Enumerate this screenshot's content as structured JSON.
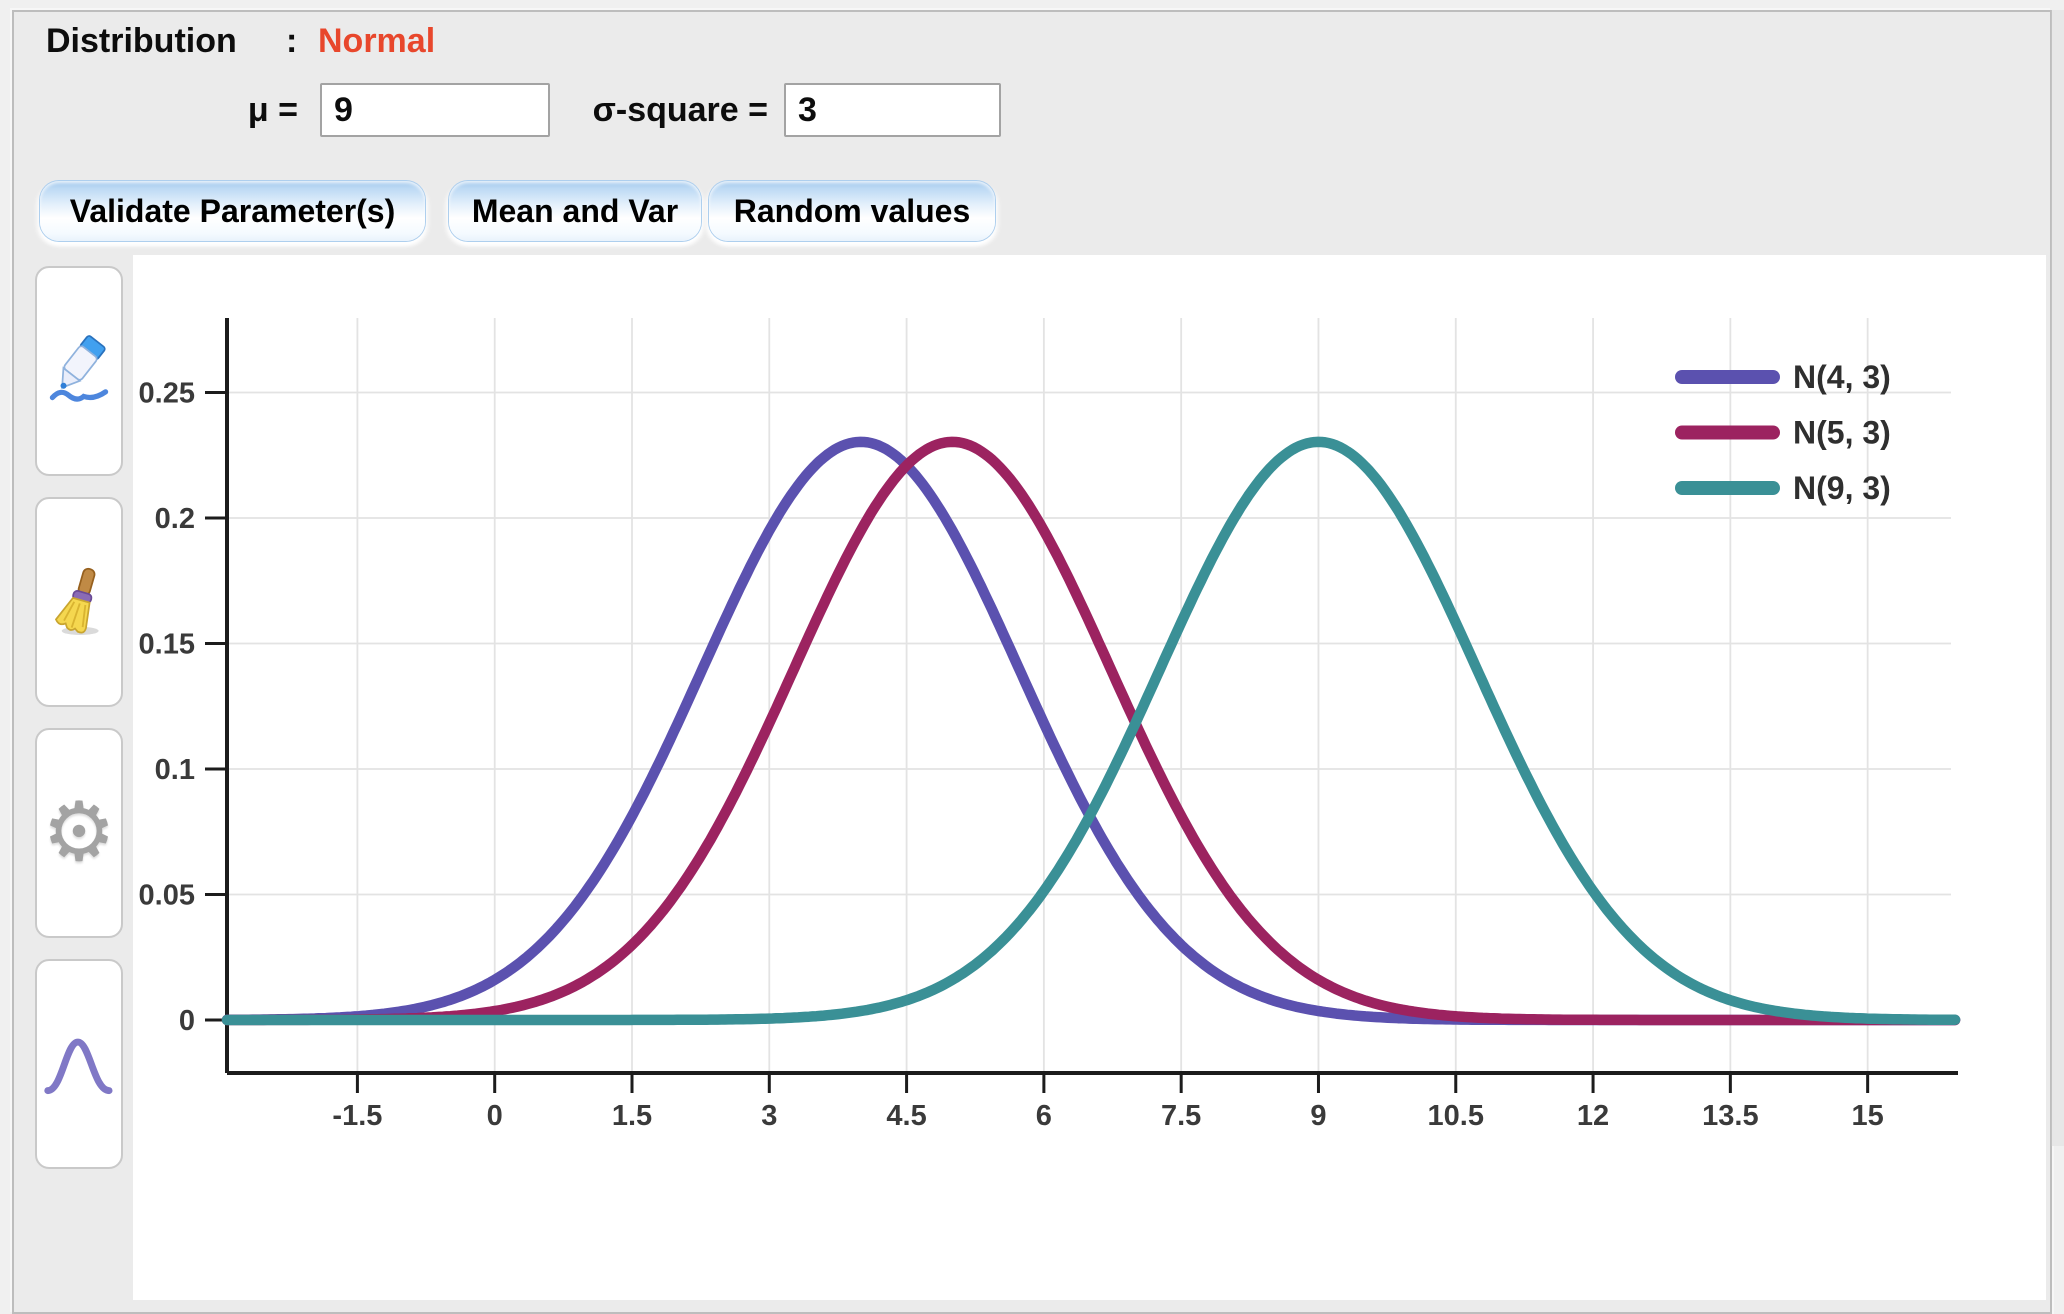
{
  "header": {
    "label": "Distribution",
    "colon": ":",
    "value": "Normal",
    "value_color": "#e8472c"
  },
  "params": [
    {
      "label": "μ =",
      "value": "9"
    },
    {
      "label": "σ-square =",
      "value": "3"
    }
  ],
  "buttons": [
    {
      "label": "Validate Parameter(s)"
    },
    {
      "label": "Mean and Var"
    },
    {
      "label": "Random values"
    }
  ],
  "sidebar": {
    "tools": [
      {
        "icon": "pen-eraser-icon"
      },
      {
        "icon": "broom-icon"
      },
      {
        "icon": "gear-icon"
      },
      {
        "icon": "bell-curve-icon"
      }
    ],
    "gear_glyph": "⚙"
  },
  "chart_data": {
    "type": "line",
    "curve": "normal-pdf",
    "title": "",
    "xlabel": "",
    "ylabel": "",
    "grid": true,
    "legend_position": "top-right",
    "xlim": [
      -2.925,
      15.99
    ],
    "ylim": [
      -0.021,
      0.28
    ],
    "x_ticks": [
      -1.5,
      0,
      1.5,
      3,
      4.5,
      6,
      7.5,
      9,
      10.5,
      12,
      13.5,
      15
    ],
    "y_ticks": [
      0,
      0.05,
      0.1,
      0.15,
      0.2,
      0.25
    ],
    "peak_value": 0.2303,
    "series": [
      {
        "name": "N(4, 3)",
        "mean": 4,
        "variance": 3,
        "color": "#5b51af"
      },
      {
        "name": "N(5, 3)",
        "mean": 5,
        "variance": 3,
        "color": "#9c2360"
      },
      {
        "name": "N(9, 3)",
        "mean": 9,
        "variance": 3,
        "color": "#3a9096"
      }
    ],
    "colors": {
      "axis": "#1c1c1c",
      "grid": "#e3e3e3",
      "tick_text": "#3a3a3a",
      "legend_text": "#2f2f2f"
    }
  }
}
